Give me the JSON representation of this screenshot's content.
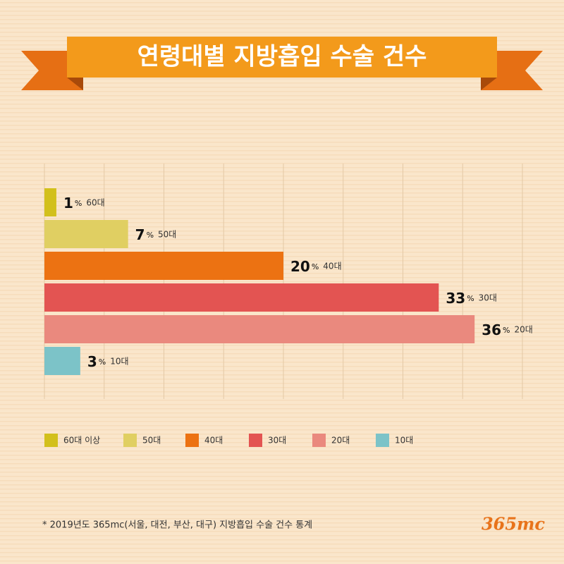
{
  "chart_data": {
    "type": "bar",
    "orientation": "horizontal",
    "title": "연령대별 지방흡입 수술 건수",
    "categories": [
      "60대",
      "50대",
      "40대",
      "30대",
      "20대",
      "10대"
    ],
    "values": [
      1,
      7,
      20,
      33,
      36,
      3
    ],
    "value_unit": "%",
    "colors": [
      "#d2c01c",
      "#e0cf62",
      "#ec7212",
      "#e35452",
      "#ea897e",
      "#7cc3c8"
    ],
    "legend": [
      "60대 이상",
      "50대",
      "40대",
      "30대",
      "20대",
      "10대"
    ],
    "xlim": [
      0,
      40
    ],
    "xticks": [
      0,
      5,
      10,
      15,
      20,
      25,
      30,
      35,
      40
    ],
    "grid": true,
    "footnote": "* 2019년도 365mc(서울, 대전, 부산, 대구) 지방흡입 수술 건수 통계",
    "logo": "365mc"
  }
}
